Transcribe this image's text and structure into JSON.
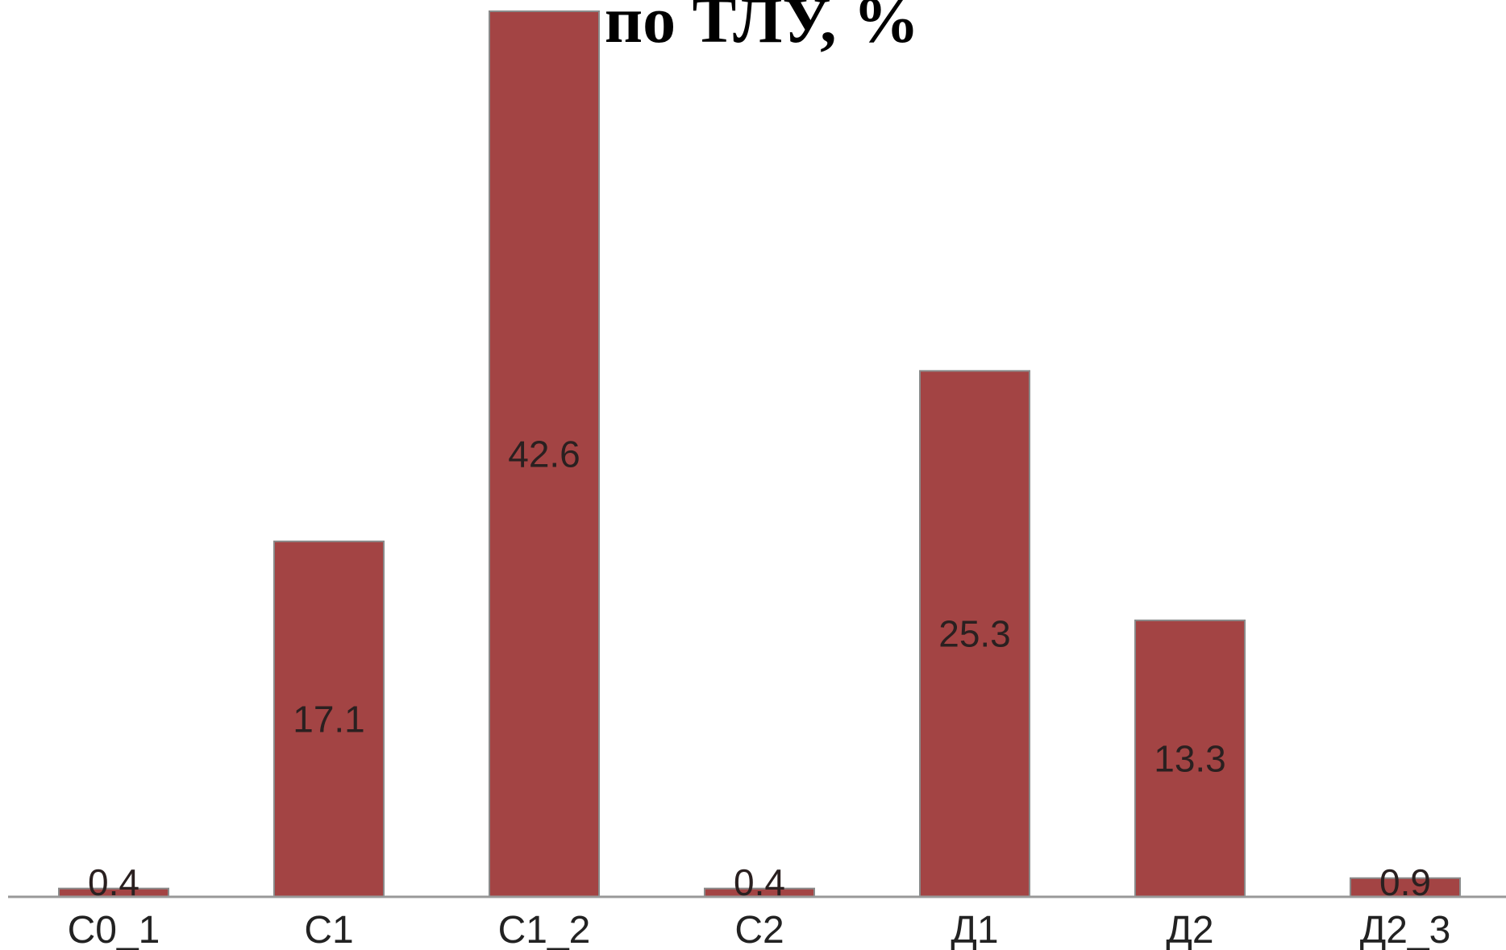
{
  "chart_data": {
    "type": "bar",
    "title": "по ТЛУ, %",
    "xlabel": "",
    "ylabel": "",
    "categories": [
      "С0_1",
      "С1",
      "С1_2",
      "С2",
      "Д1",
      "Д2",
      "Д2_3"
    ],
    "values": [
      0.4,
      17.1,
      42.6,
      0.4,
      25.3,
      13.3,
      0.9
    ],
    "data_labels": [
      "0.4",
      "17.1",
      "42.6",
      "0.4",
      "25.3",
      "13.3",
      "0.9"
    ],
    "ylim": [
      0,
      42.6
    ],
    "grid": false,
    "legend": "none",
    "colors": {
      "bar": "#a34444",
      "axis": "#999999"
    }
  }
}
